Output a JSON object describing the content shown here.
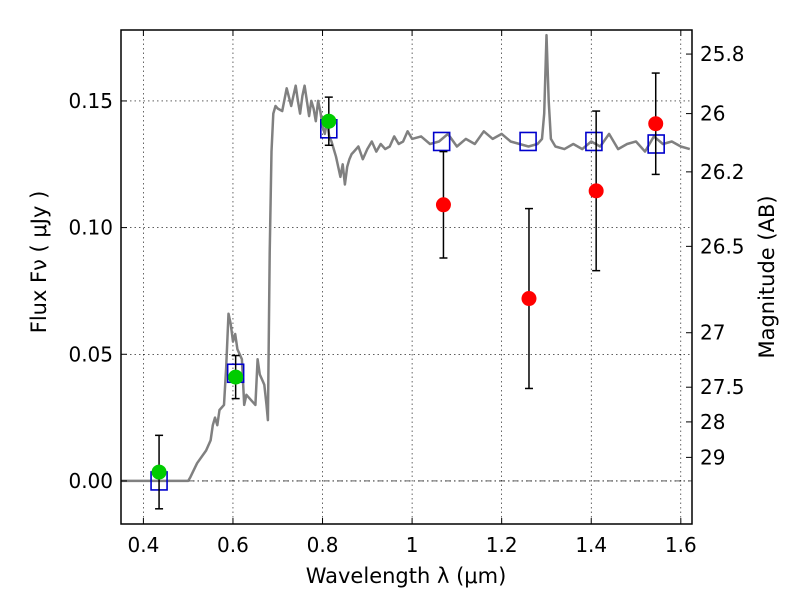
{
  "chart_data": {
    "type": "scatter",
    "title": "",
    "xlabel": "Wavelength  λ (μm)",
    "ylabel": "Flux  Fν  ( μJy )",
    "y2label": "Magnitude (AB)",
    "xlim": [
      0.35,
      1.625
    ],
    "ylim": [
      -0.017,
      0.178
    ],
    "grid": true,
    "x_ticks": [
      {
        "v": 0.4,
        "label": "0.4"
      },
      {
        "v": 0.6,
        "label": "0.6"
      },
      {
        "v": 0.8,
        "label": "0.8"
      },
      {
        "v": 1.0,
        "label": "1"
      },
      {
        "v": 1.2,
        "label": "1.2"
      },
      {
        "v": 1.4,
        "label": "1.4"
      },
      {
        "v": 1.6,
        "label": "1.6"
      }
    ],
    "y_ticks": [
      {
        "v": 0.0,
        "label": "0.00"
      },
      {
        "v": 0.05,
        "label": "0.05"
      },
      {
        "v": 0.1,
        "label": "0.10"
      },
      {
        "v": 0.15,
        "label": "0.15"
      }
    ],
    "mag_ticks": [
      {
        "label": "25.8",
        "flux": 0.1685
      },
      {
        "label": "26",
        "flux": 0.145
      },
      {
        "label": "26.2",
        "flux": 0.122
      },
      {
        "label": "26.5",
        "flux": 0.0926
      },
      {
        "label": "27",
        "flux": 0.0585
      },
      {
        "label": "27.5",
        "flux": 0.037
      },
      {
        "label": "28",
        "flux": 0.0233
      },
      {
        "label": "29",
        "flux": 0.0093
      }
    ],
    "series": [
      {
        "kind": "line",
        "color": "#808080",
        "x": [
          0.35,
          0.5,
          0.505,
          0.52,
          0.54,
          0.55,
          0.555,
          0.56,
          0.565,
          0.57,
          0.58,
          0.585,
          0.59,
          0.595,
          0.6,
          0.605,
          0.61,
          0.62,
          0.625,
          0.63,
          0.64,
          0.65,
          0.655,
          0.66,
          0.665,
          0.67,
          0.675,
          0.678,
          0.682,
          0.686,
          0.69,
          0.695,
          0.7,
          0.71,
          0.72,
          0.73,
          0.735,
          0.74,
          0.745,
          0.75,
          0.755,
          0.76,
          0.765,
          0.77,
          0.775,
          0.78,
          0.785,
          0.79,
          0.795,
          0.8,
          0.805,
          0.81,
          0.815,
          0.82,
          0.83,
          0.84,
          0.845,
          0.85,
          0.855,
          0.86,
          0.865,
          0.87,
          0.88,
          0.89,
          0.9,
          0.91,
          0.92,
          0.93,
          0.94,
          0.95,
          0.96,
          0.97,
          0.98,
          0.99,
          1.0,
          1.02,
          1.04,
          1.06,
          1.08,
          1.1,
          1.12,
          1.14,
          1.16,
          1.18,
          1.2,
          1.22,
          1.24,
          1.26,
          1.28,
          1.29,
          1.295,
          1.3,
          1.305,
          1.31,
          1.32,
          1.34,
          1.36,
          1.38,
          1.4,
          1.42,
          1.44,
          1.46,
          1.48,
          1.5,
          1.52,
          1.54,
          1.56,
          1.58,
          1.6,
          1.62
        ],
        "y": [
          0.0,
          0.0,
          0.0015,
          0.007,
          0.012,
          0.016,
          0.022,
          0.025,
          0.022,
          0.028,
          0.03,
          0.045,
          0.066,
          0.062,
          0.055,
          0.058,
          0.052,
          0.048,
          0.03,
          0.034,
          0.032,
          0.03,
          0.048,
          0.042,
          0.04,
          0.038,
          0.03,
          0.024,
          0.09,
          0.13,
          0.145,
          0.148,
          0.147,
          0.146,
          0.155,
          0.148,
          0.152,
          0.156,
          0.15,
          0.145,
          0.152,
          0.156,
          0.15,
          0.144,
          0.15,
          0.147,
          0.142,
          0.15,
          0.146,
          0.14,
          0.137,
          0.142,
          0.136,
          0.134,
          0.128,
          0.12,
          0.125,
          0.117,
          0.124,
          0.127,
          0.129,
          0.13,
          0.132,
          0.127,
          0.131,
          0.134,
          0.13,
          0.133,
          0.131,
          0.132,
          0.136,
          0.133,
          0.134,
          0.138,
          0.135,
          0.136,
          0.133,
          0.134,
          0.137,
          0.132,
          0.135,
          0.133,
          0.138,
          0.135,
          0.137,
          0.134,
          0.133,
          0.132,
          0.133,
          0.135,
          0.145,
          0.176,
          0.15,
          0.135,
          0.132,
          0.131,
          0.133,
          0.131,
          0.134,
          0.132,
          0.137,
          0.131,
          0.133,
          0.134,
          0.13,
          0.136,
          0.133,
          0.134,
          0.132,
          0.131
        ]
      },
      {
        "kind": "open-squares",
        "color": "#0000cc",
        "x": [
          0.435,
          0.606,
          0.814,
          1.066,
          1.259,
          1.406,
          1.545
        ],
        "y": [
          0.0,
          0.0425,
          0.139,
          0.134,
          0.134,
          0.134,
          0.133
        ]
      },
      {
        "kind": "filled-circles",
        "color": "#00cc00",
        "x": [
          0.435,
          0.606,
          0.814
        ],
        "y": [
          0.0035,
          0.041,
          0.142
        ],
        "yerr": [
          0.0145,
          0.0085,
          0.0095
        ]
      },
      {
        "kind": "filled-circles",
        "color": "#ff0000",
        "x": [
          1.07,
          1.261,
          1.411,
          1.544
        ],
        "y": [
          0.109,
          0.072,
          0.1145,
          0.141
        ],
        "yerr": [
          0.021,
          0.0355,
          0.0315,
          0.02
        ]
      }
    ]
  }
}
